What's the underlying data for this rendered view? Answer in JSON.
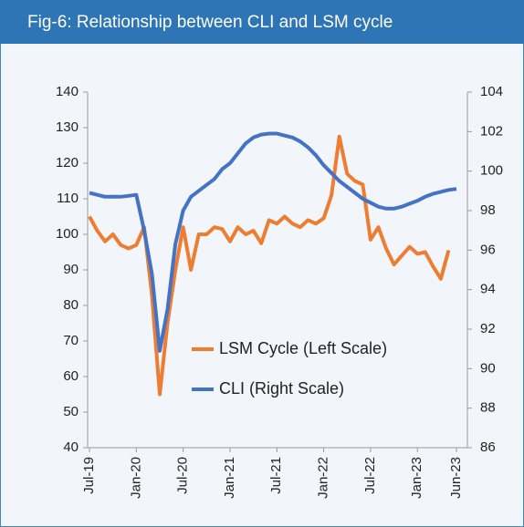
{
  "chart_data": {
    "type": "line",
    "title": "Fig-6: Relationship between CLI and LSM cycle",
    "categories": [
      "Jul-19",
      null,
      null,
      null,
      null,
      null,
      "Jan-20",
      null,
      null,
      null,
      null,
      null,
      "Jul-20",
      null,
      null,
      null,
      null,
      null,
      "Jan-21",
      null,
      null,
      null,
      null,
      null,
      "Jul-21",
      null,
      null,
      null,
      null,
      null,
      "Jan-22",
      null,
      null,
      null,
      null,
      null,
      "Jul-22",
      null,
      null,
      null,
      null,
      null,
      "Jan-23",
      null,
      null,
      null,
      null,
      "Jun-23"
    ],
    "series": [
      {
        "name": "LSM Cycle (Left Scale)",
        "color": "#ed7d31",
        "axis": "y",
        "values": [
          105,
          101,
          98,
          100,
          97,
          96,
          97,
          102,
          83,
          55,
          75,
          90,
          102,
          90,
          100,
          100,
          102,
          101.5,
          98,
          102,
          100,
          101,
          97.5,
          104,
          103,
          105,
          103,
          102,
          104,
          103,
          104.5,
          111,
          127.5,
          117,
          115,
          114,
          98.5,
          102,
          96,
          91.5,
          94,
          96.5,
          94.5,
          95,
          91,
          87.5,
          95.5,
          null
        ]
      },
      {
        "name": "CLI (Right Scale)",
        "color": "#4472c4",
        "axis": "y2",
        "values": [
          98.9,
          98.8,
          98.7,
          98.7,
          98.7,
          98.75,
          98.8,
          97,
          94.8,
          90.9,
          93,
          96.3,
          98,
          98.7,
          99,
          99.3,
          99.6,
          100.1,
          100.4,
          100.9,
          101.4,
          101.7,
          101.85,
          101.9,
          101.9,
          101.8,
          101.7,
          101.5,
          101.2,
          100.8,
          100.3,
          99.9,
          99.5,
          99.2,
          98.9,
          98.6,
          98.4,
          98.2,
          98.1,
          98.1,
          98.2,
          98.35,
          98.5,
          98.7,
          98.85,
          98.95,
          99.05,
          99.1
        ]
      }
    ],
    "ylim": [
      40,
      140
    ],
    "yticks": [
      40,
      50,
      60,
      70,
      80,
      90,
      100,
      110,
      120,
      130,
      140
    ],
    "y2lim": [
      86,
      104
    ],
    "y2ticks": [
      86,
      88,
      90,
      92,
      94,
      96,
      98,
      100,
      102,
      104
    ],
    "grid": false,
    "legend": "center"
  }
}
